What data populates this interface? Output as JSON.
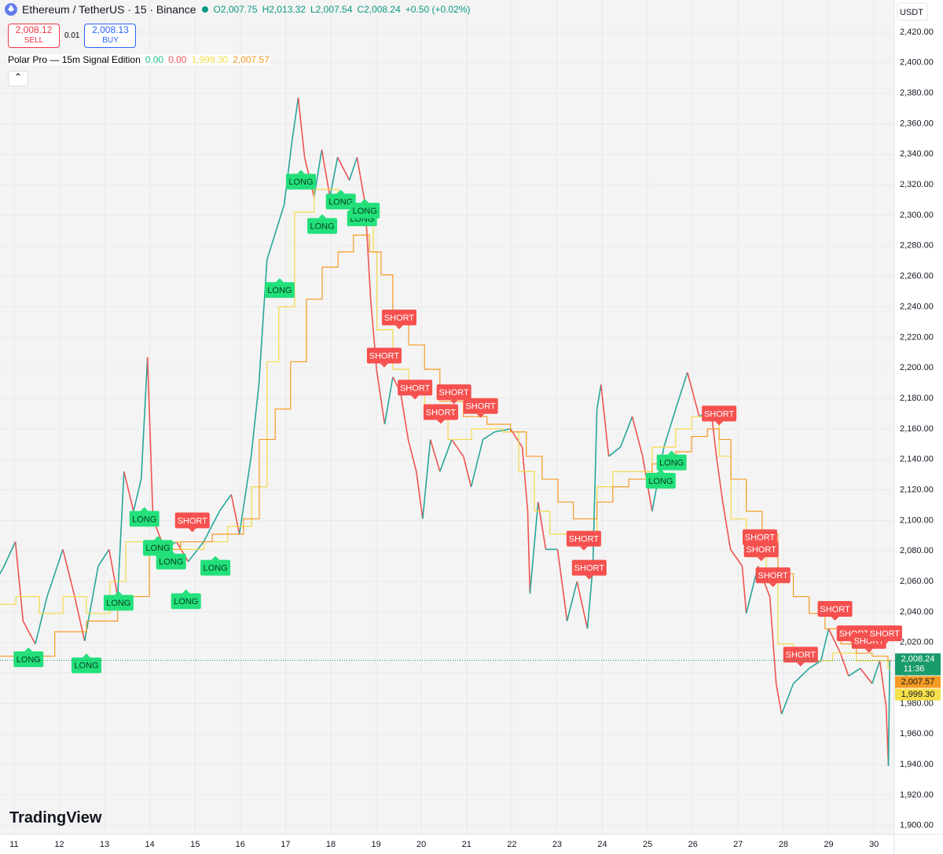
{
  "chart_data": {
    "type": "price",
    "symbol": "Ethereum / TetherUS · 15 · Binance",
    "ohlc": [
      {
        "key": "O",
        "value": "2,007.75"
      },
      {
        "key": "H",
        "value": "2,013.32"
      },
      {
        "key": "L",
        "value": "2,007.54"
      },
      {
        "key": "C",
        "value": "2,008.24"
      }
    ],
    "change": "+0.50 (+0.02%)",
    "sell": {
      "price": "2,008.12",
      "label": "SELL"
    },
    "spread": "0.01",
    "buy": {
      "price": "2,008.13",
      "label": "BUY"
    },
    "indicator": {
      "name": "Polar Pro — 15m Signal Edition",
      "values": [
        {
          "text": "0.00",
          "color": "#22c08a"
        },
        {
          "text": "0.00",
          "color": "#f0565a"
        },
        {
          "text": "1,999.30",
          "color": "#f5e04a"
        },
        {
          "text": "2,007.57",
          "color": "#f59a23"
        }
      ]
    },
    "currency": "USDT",
    "brand": "TradingView",
    "xlim": [
      10.69,
      30.45
    ],
    "xticks": [
      11,
      12,
      13,
      14,
      15,
      16,
      17,
      18,
      19,
      20,
      21,
      22,
      23,
      24,
      25,
      26,
      27,
      28,
      29,
      30
    ],
    "ylim": [
      1894.2,
      2441.1
    ],
    "yticks": [
      {
        "value": 1900,
        "label": "1,900.00"
      },
      {
        "value": 1920,
        "label": "1,920.00"
      },
      {
        "value": 1940,
        "label": "1,940.00"
      },
      {
        "value": 1960,
        "label": "1,960.00"
      },
      {
        "value": 1980,
        "label": "1,980.00"
      },
      {
        "value": 2000,
        "label": "2,000.00"
      },
      {
        "value": 2020,
        "label": "2,020.00"
      },
      {
        "value": 2040,
        "label": "2,040.00"
      },
      {
        "value": 2060,
        "label": "2,060.00"
      },
      {
        "value": 2080,
        "label": "2,080.00"
      },
      {
        "value": 2100,
        "label": "2,100.00"
      },
      {
        "value": 2120,
        "label": "2,120.00"
      },
      {
        "value": 2140,
        "label": "2,140.00"
      },
      {
        "value": 2160,
        "label": "2,160.00"
      },
      {
        "value": 2180,
        "label": "2,180.00"
      },
      {
        "value": 2200,
        "label": "2,200.00"
      },
      {
        "value": 2220,
        "label": "2,220.00"
      },
      {
        "value": 2240,
        "label": "2,240.00"
      },
      {
        "value": 2260,
        "label": "2,260.00"
      },
      {
        "value": 2280,
        "label": "2,280.00"
      },
      {
        "value": 2300,
        "label": "2,300.00"
      },
      {
        "value": 2320,
        "label": "2,320.00"
      },
      {
        "value": 2340,
        "label": "2,340.00"
      },
      {
        "value": 2360,
        "label": "2,360.00"
      },
      {
        "value": 2380,
        "label": "2,380.00"
      },
      {
        "value": 2400,
        "label": "2,400.00"
      },
      {
        "value": 2420,
        "label": "2,420.00"
      }
    ],
    "grid": true,
    "price": {
      "up_color": "#26a69a",
      "down_color": "#ef5350",
      "x": [
        10.69,
        10.78,
        11.03,
        11.2,
        11.47,
        11.73,
        12.08,
        12.34,
        12.56,
        12.86,
        13.1,
        13.29,
        13.43,
        13.64,
        13.81,
        13.95,
        14.07,
        14.33,
        14.59,
        14.85,
        15.19,
        15.54,
        15.8,
        15.98,
        16.24,
        16.41,
        16.59,
        16.76,
        16.97,
        17.14,
        17.28,
        17.42,
        17.63,
        17.8,
        17.98,
        18.15,
        18.41,
        18.58,
        18.76,
        18.88,
        19.01,
        19.19,
        19.37,
        19.54,
        19.71,
        19.89,
        20.03,
        20.2,
        20.41,
        20.67,
        20.93,
        21.1,
        21.36,
        21.62,
        21.97,
        22.23,
        22.35,
        22.4,
        22.58,
        22.75,
        23.01,
        23.22,
        23.44,
        23.67,
        23.79,
        23.88,
        23.97,
        24.14,
        24.4,
        24.66,
        24.89,
        25.1,
        25.36,
        25.62,
        25.88,
        26.14,
        26.4,
        26.52,
        26.66,
        26.83,
        27.09,
        27.18,
        27.44,
        27.7,
        27.84,
        27.96,
        28.22,
        28.57,
        28.83,
        29.0,
        29.26,
        29.44,
        29.7,
        29.96,
        30.13,
        30.27,
        30.32,
        30.35
      ],
      "values": [
        2065,
        2070,
        2086,
        2034,
        2019,
        2050,
        2081,
        2050,
        2021,
        2070,
        2081,
        2050,
        2132,
        2106,
        2127,
        2207,
        2101,
        2081,
        2086,
        2073,
        2086,
        2106,
        2117,
        2091,
        2142,
        2189,
        2271,
        2287,
        2307,
        2348,
        2377,
        2338,
        2312,
        2343,
        2312,
        2338,
        2323,
        2338,
        2307,
        2245,
        2199,
        2163,
        2194,
        2184,
        2153,
        2132,
        2101,
        2153,
        2132,
        2153,
        2142,
        2122,
        2153,
        2158,
        2160,
        2148,
        2106,
        2052,
        2112,
        2081,
        2081,
        2034,
        2060,
        2029,
        2070,
        2173,
        2189,
        2142,
        2148,
        2168,
        2142,
        2106,
        2148,
        2173,
        2197,
        2168,
        2173,
        2142,
        2112,
        2081,
        2070,
        2039,
        2070,
        2050,
        1993,
        1973,
        1993,
        2003,
        2008,
        2029,
        2013,
        1998,
        2003,
        1993,
        2008,
        1978,
        1939,
        2008
      ]
    },
    "series": [
      {
        "color": "#f5d94a",
        "x": [
          10.69,
          11.04,
          11.56,
          12.08,
          12.6,
          13.12,
          13.47,
          13.99,
          14.68,
          15.2,
          15.72,
          16.25,
          16.59,
          16.85,
          17.2,
          17.63,
          18.16,
          18.59,
          18.94,
          19.02,
          19.37,
          19.72,
          20.07,
          20.59,
          21.11,
          21.8,
          22.15,
          22.5,
          22.84,
          23.36,
          23.88,
          24.23,
          24.75,
          25.1,
          25.62,
          25.97,
          26.32,
          26.58,
          26.84,
          27.18,
          27.62,
          27.88,
          28.22,
          28.75,
          29.09,
          29.61,
          30.31
        ],
        "values": [
          2045,
          2050,
          2039,
          2050,
          2039,
          2060,
          2086,
          2086,
          2081,
          2086,
          2096,
          2122,
          2204,
          2240,
          2302,
          2317,
          2307,
          2297,
          2276,
          2225,
          2199,
          2189,
          2168,
          2153,
          2160,
          2158,
          2132,
          2106,
          2091,
          2086,
          2122,
          2132,
          2132,
          2148,
          2160,
          2168,
          2168,
          2142,
          2101,
          2086,
          2065,
          2019,
          2008,
          2008,
          2013,
          2008,
          2003
        ]
      },
      {
        "color": "#f59a23",
        "x": [
          10.69,
          11.9,
          12.6,
          13.29,
          13.99,
          14.68,
          15.38,
          16.07,
          16.42,
          16.77,
          17.11,
          17.46,
          17.81,
          18.16,
          18.5,
          18.85,
          19.11,
          19.37,
          19.72,
          20.07,
          20.41,
          20.93,
          21.45,
          21.97,
          22.32,
          22.67,
          23.02,
          23.36,
          23.88,
          24.23,
          24.58,
          25.1,
          25.62,
          25.97,
          26.32,
          26.58,
          26.84,
          27.18,
          27.53,
          27.88,
          28.22,
          28.57,
          28.92,
          29.27,
          29.61,
          29.96,
          30.31
        ],
        "values": [
          2011,
          2027,
          2034,
          2050,
          2081,
          2086,
          2091,
          2101,
          2153,
          2173,
          2204,
          2245,
          2266,
          2276,
          2287,
          2276,
          2261,
          2235,
          2215,
          2199,
          2178,
          2168,
          2163,
          2158,
          2142,
          2127,
          2112,
          2101,
          2112,
          2122,
          2127,
          2137,
          2145,
          2155,
          2160,
          2153,
          2127,
          2106,
          2091,
          2065,
          2050,
          2039,
          2029,
          2019,
          2013,
          2011,
          2008
        ]
      }
    ],
    "signals": [
      {
        "label": "LONG",
        "x": 17.34,
        "y": 2322
      },
      {
        "label": "LONG",
        "x": 16.87,
        "y": 2251
      },
      {
        "label": "LONG",
        "x": 17.81,
        "y": 2293
      },
      {
        "label": "LONG",
        "x": 18.22,
        "y": 2309
      },
      {
        "label": "LONG",
        "x": 18.69,
        "y": 2298
      },
      {
        "label": "LONG",
        "x": 18.75,
        "y": 2303
      },
      {
        "label": "LONG",
        "x": 13.88,
        "y": 2101
      },
      {
        "label": "LONG",
        "x": 14.18,
        "y": 2082
      },
      {
        "label": "LONG",
        "x": 14.47,
        "y": 2073
      },
      {
        "label": "LONG",
        "x": 15.45,
        "y": 2069
      },
      {
        "label": "LONG",
        "x": 14.8,
        "y": 2047
      },
      {
        "label": "LONG",
        "x": 13.31,
        "y": 2046
      },
      {
        "label": "LONG",
        "x": 11.32,
        "y": 2009
      },
      {
        "label": "LONG",
        "x": 12.6,
        "y": 2005
      },
      {
        "label": "LONG",
        "x": 25.53,
        "y": 2138
      },
      {
        "label": "LONG",
        "x": 25.29,
        "y": 2126
      },
      {
        "label": "SHORT",
        "x": 19.51,
        "y": 2233
      },
      {
        "label": "SHORT",
        "x": 19.18,
        "y": 2208
      },
      {
        "label": "SHORT",
        "x": 19.86,
        "y": 2187
      },
      {
        "label": "SHORT",
        "x": 20.72,
        "y": 2184
      },
      {
        "label": "SHORT",
        "x": 20.43,
        "y": 2171
      },
      {
        "label": "SHORT",
        "x": 21.31,
        "y": 2175
      },
      {
        "label": "SHORT",
        "x": 14.94,
        "y": 2100
      },
      {
        "label": "SHORT",
        "x": 23.59,
        "y": 2088
      },
      {
        "label": "SHORT",
        "x": 23.71,
        "y": 2069
      },
      {
        "label": "SHORT",
        "x": 26.58,
        "y": 2170
      },
      {
        "label": "SHORT",
        "x": 27.48,
        "y": 2089
      },
      {
        "label": "SHORT",
        "x": 27.51,
        "y": 2081
      },
      {
        "label": "SHORT",
        "x": 27.77,
        "y": 2064
      },
      {
        "label": "SHORT",
        "x": 29.14,
        "y": 2042
      },
      {
        "label": "SHORT",
        "x": 29.56,
        "y": 2026
      },
      {
        "label": "SHORT",
        "x": 29.89,
        "y": 2021
      },
      {
        "label": "SHORT",
        "x": 30.24,
        "y": 2026
      },
      {
        "label": "SHORT",
        "x": 28.38,
        "y": 2012
      }
    ],
    "signal_colors": {
      "LONG": "#22e07a",
      "SHORT": "#f5504e"
    },
    "price_tags": [
      {
        "value": 2008.24,
        "label": "2,008.24",
        "sub": "11:36",
        "color": "#1a9b6c"
      },
      {
        "value": 2007.57,
        "label": "2,007.57",
        "color": "#f59a23"
      },
      {
        "value": 1999.3,
        "label": "1,999.30",
        "color": "#f5e04a"
      }
    ]
  }
}
